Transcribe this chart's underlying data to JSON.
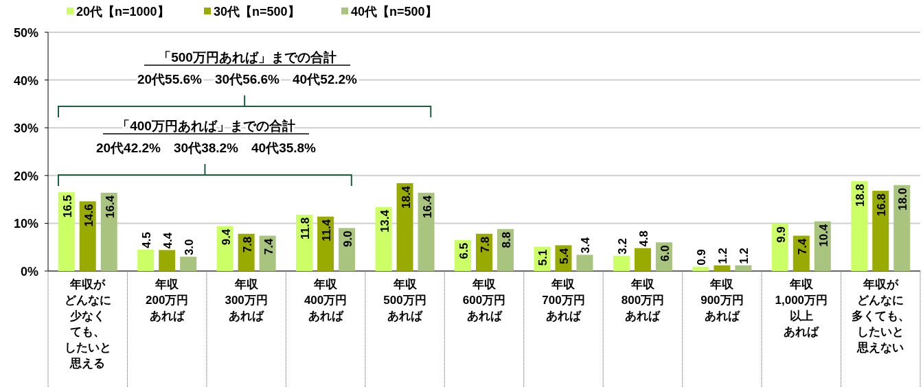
{
  "chart_data": {
    "type": "bar",
    "categories": [
      "年収がどんなに少なくても、したいと思える",
      "年収200万円あれば",
      "年収300万円あれば",
      "年収400万円あれば",
      "年収500万円あれば",
      "年収600万円あれば",
      "年収700万円あれば",
      "年収800万円あれば",
      "年収900万円あれば",
      "年収1,000万円以上あれば",
      "年収がどんなに多くても、したいと思えない"
    ],
    "series": [
      {
        "name": "20代【n=1000】",
        "color": "#ccff66",
        "values": [
          16.5,
          4.5,
          9.4,
          11.8,
          13.4,
          6.5,
          5.1,
          3.2,
          0.9,
          9.9,
          18.8
        ],
        "value_labels": [
          "16.5",
          "4.5",
          "9.4",
          "11.8",
          "13.4",
          "6.5",
          "5.1",
          "3.2",
          "0.9",
          "9.9",
          "18.8"
        ]
      },
      {
        "name": "30代【n=500】",
        "color": "#99aa00",
        "values": [
          14.6,
          4.4,
          7.8,
          11.4,
          18.4,
          7.8,
          5.4,
          4.8,
          1.2,
          7.4,
          16.8
        ],
        "value_labels": [
          "14.6",
          "4.4",
          "7.8",
          "11.4",
          "18.4",
          "7.8",
          "5.4",
          "4.8",
          "1.2",
          "7.4",
          "16.8"
        ]
      },
      {
        "name": "40代【n=500】",
        "color": "#a9c47f",
        "values": [
          16.4,
          3.0,
          7.4,
          9.0,
          16.4,
          8.8,
          3.4,
          6.0,
          1.2,
          10.4,
          18.0
        ],
        "value_labels": [
          "16.4",
          "3.0",
          "7.4",
          "9.0",
          "16.4",
          "8.8",
          "3.4",
          "6.0",
          "1.2",
          "10.4",
          "18.0"
        ]
      }
    ],
    "ylim": [
      0,
      50
    ],
    "yticks": [
      {
        "value": 0,
        "label": "0%"
      },
      {
        "value": 10,
        "label": "10%"
      },
      {
        "value": 20,
        "label": "20%"
      },
      {
        "value": 30,
        "label": "30%"
      },
      {
        "value": 40,
        "label": "40%"
      },
      {
        "value": 50,
        "label": "50%"
      }
    ],
    "grid": "y",
    "legend": "top left",
    "annotations": [
      "「500万円あれば」までの合計\n20代55.6%　30代56.6%　40代52.2%",
      "「400万円あれば」までの合計\n20代42.2%　30代38.2%　40代35.8%"
    ]
  }
}
